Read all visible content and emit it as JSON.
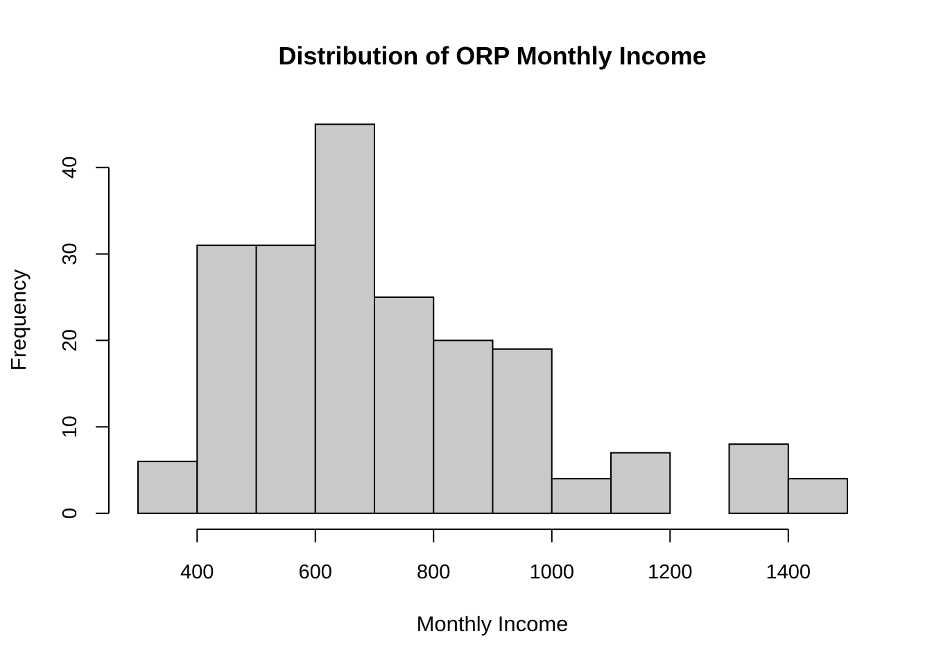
{
  "chart_data": {
    "type": "bar",
    "title": "Distribution of ORP Monthly Income",
    "xlabel": "Monthly Income",
    "ylabel": "Frequency",
    "bin_edges": [
      300,
      400,
      500,
      600,
      700,
      800,
      900,
      1000,
      1100,
      1200,
      1300,
      1400,
      1500
    ],
    "values": [
      6,
      31,
      31,
      45,
      25,
      20,
      19,
      4,
      7,
      0,
      8,
      4
    ],
    "x_ticks": [
      400,
      600,
      800,
      1000,
      1200,
      1400
    ],
    "y_ticks": [
      0,
      10,
      20,
      30,
      40
    ],
    "xlim": [
      300,
      1500
    ],
    "ylim": [
      0,
      45
    ],
    "bar_color": "#c9c9c9",
    "grid": false
  }
}
